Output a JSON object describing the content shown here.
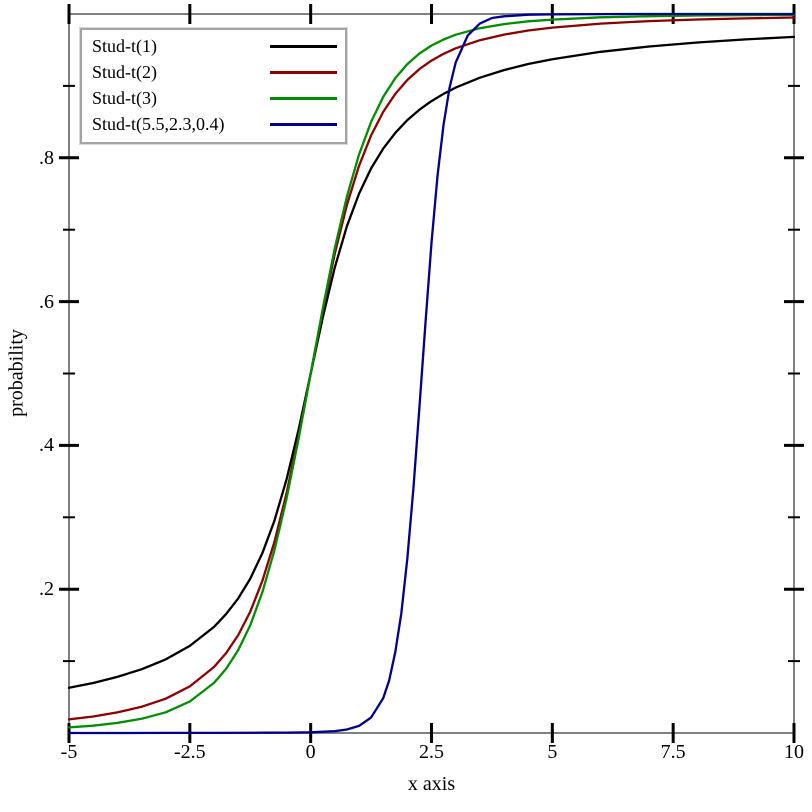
{
  "figure": {
    "background": "#ffffff",
    "axis_color": "#808080",
    "tick_color": "#000000"
  },
  "chart_data": {
    "type": "line",
    "title": "",
    "xlabel": "x axis",
    "ylabel": "probability",
    "xlim": [
      -5,
      10
    ],
    "ylim": [
      0,
      1
    ],
    "grid": false,
    "legend_position": "top-left",
    "x_ticks": {
      "values": [
        -5,
        -2.5,
        0,
        2.5,
        5,
        7.5,
        10
      ],
      "labels": [
        "-5",
        "-2.5",
        "0",
        "2.5",
        "5",
        "7.5",
        "10"
      ]
    },
    "y_ticks": {
      "major_values": [
        0.2,
        0.4,
        0.6,
        0.8
      ],
      "major_labels": [
        ".2",
        ".4",
        ".6",
        ".8"
      ],
      "minor_values": [
        0.1,
        0.3,
        0.5,
        0.7,
        0.9
      ]
    },
    "series": [
      {
        "name": "Stud-t(1)",
        "color": "#000000",
        "points": [
          [
            -5,
            0.0628
          ],
          [
            -4.5,
            0.0696
          ],
          [
            -4,
            0.078
          ],
          [
            -3.5,
            0.0886
          ],
          [
            -3,
            0.1024
          ],
          [
            -2.5,
            0.1211
          ],
          [
            -2,
            0.1476
          ],
          [
            -1.75,
            0.1653
          ],
          [
            -1.5,
            0.1872
          ],
          [
            -1.25,
            0.2148
          ],
          [
            -1,
            0.25
          ],
          [
            -0.75,
            0.2952
          ],
          [
            -0.5,
            0.3524
          ],
          [
            -0.25,
            0.422
          ],
          [
            0,
            0.5
          ],
          [
            0.25,
            0.578
          ],
          [
            0.5,
            0.6476
          ],
          [
            0.75,
            0.7048
          ],
          [
            1,
            0.75
          ],
          [
            1.25,
            0.7852
          ],
          [
            1.5,
            0.8128
          ],
          [
            1.75,
            0.8347
          ],
          [
            2,
            0.8524
          ],
          [
            2.25,
            0.8669
          ],
          [
            2.5,
            0.8789
          ],
          [
            2.75,
            0.889
          ],
          [
            3,
            0.8976
          ],
          [
            3.5,
            0.9114
          ],
          [
            4,
            0.922
          ],
          [
            4.5,
            0.9304
          ],
          [
            5,
            0.9372
          ],
          [
            6,
            0.9474
          ],
          [
            7,
            0.9548
          ],
          [
            8,
            0.9604
          ],
          [
            9,
            0.9647
          ],
          [
            10,
            0.9682
          ]
        ]
      },
      {
        "name": "Stud-t(2)",
        "color": "#8B0000",
        "points": [
          [
            -5,
            0.0189
          ],
          [
            -4.5,
            0.023
          ],
          [
            -4,
            0.0286
          ],
          [
            -3.5,
            0.0364
          ],
          [
            -3,
            0.0477
          ],
          [
            -2.5,
            0.0648
          ],
          [
            -2,
            0.0918
          ],
          [
            -1.75,
            0.1111
          ],
          [
            -1.5,
            0.1362
          ],
          [
            -1.25,
            0.1689
          ],
          [
            -1,
            0.2113
          ],
          [
            -0.75,
            0.2657
          ],
          [
            -0.5,
            0.3333
          ],
          [
            -0.25,
            0.413
          ],
          [
            0,
            0.5
          ],
          [
            0.25,
            0.587
          ],
          [
            0.5,
            0.6667
          ],
          [
            0.75,
            0.7343
          ],
          [
            1,
            0.7887
          ],
          [
            1.25,
            0.8311
          ],
          [
            1.5,
            0.8638
          ],
          [
            1.75,
            0.8889
          ],
          [
            2,
            0.9082
          ],
          [
            2.25,
            0.9233
          ],
          [
            2.5,
            0.9352
          ],
          [
            2.75,
            0.9446
          ],
          [
            3,
            0.9523
          ],
          [
            3.5,
            0.9636
          ],
          [
            4,
            0.9714
          ],
          [
            4.5,
            0.977
          ],
          [
            5,
            0.9811
          ],
          [
            6,
            0.9867
          ],
          [
            7,
            0.9901
          ],
          [
            8,
            0.9924
          ],
          [
            9,
            0.9939
          ],
          [
            10,
            0.9951
          ]
        ]
      },
      {
        "name": "Stud-t(3)",
        "color": "#008C00",
        "points": [
          [
            -5,
            0.0078
          ],
          [
            -4.5,
            0.0102
          ],
          [
            -4,
            0.0141
          ],
          [
            -3.5,
            0.0198
          ],
          [
            -3,
            0.0288
          ],
          [
            -2.5,
            0.0438
          ],
          [
            -2,
            0.0697
          ],
          [
            -1.75,
            0.0892
          ],
          [
            -1.5,
            0.1153
          ],
          [
            -1.25,
            0.15
          ],
          [
            -1,
            0.1955
          ],
          [
            -0.75,
            0.2539
          ],
          [
            -0.5,
            0.3257
          ],
          [
            -0.25,
            0.4094
          ],
          [
            0,
            0.5
          ],
          [
            0.25,
            0.5906
          ],
          [
            0.5,
            0.6743
          ],
          [
            0.75,
            0.7461
          ],
          [
            1,
            0.8045
          ],
          [
            1.25,
            0.85
          ],
          [
            1.5,
            0.8847
          ],
          [
            1.75,
            0.9108
          ],
          [
            2,
            0.9303
          ],
          [
            2.25,
            0.9451
          ],
          [
            2.5,
            0.9562
          ],
          [
            2.75,
            0.9646
          ],
          [
            3,
            0.9712
          ],
          [
            3.5,
            0.9802
          ],
          [
            4,
            0.9859
          ],
          [
            4.5,
            0.9898
          ],
          [
            5,
            0.9922
          ],
          [
            6,
            0.9954
          ],
          [
            7,
            0.997
          ],
          [
            8,
            0.9979
          ],
          [
            9,
            0.9985
          ],
          [
            10,
            0.9989
          ]
        ]
      },
      {
        "name": "Stud-t(5.5,2.3,0.4)",
        "color": "#00008B",
        "points": [
          [
            -5,
            0.0
          ],
          [
            -4,
            0.0
          ],
          [
            -3,
            0.0001
          ],
          [
            -2,
            0.0002
          ],
          [
            -1,
            0.0004
          ],
          [
            -0.5,
            0.0006
          ],
          [
            0,
            0.001
          ],
          [
            0.5,
            0.0025
          ],
          [
            0.75,
            0.0048
          ],
          [
            1,
            0.0099
          ],
          [
            1.25,
            0.0216
          ],
          [
            1.5,
            0.0484
          ],
          [
            1.625,
            0.0734
          ],
          [
            1.75,
            0.1126
          ],
          [
            1.875,
            0.1662
          ],
          [
            2,
            0.2422
          ],
          [
            2.125,
            0.34
          ],
          [
            2.25,
            0.4526
          ],
          [
            2.375,
            0.5708
          ],
          [
            2.5,
            0.6818
          ],
          [
            2.625,
            0.7747
          ],
          [
            2.75,
            0.8464
          ],
          [
            2.875,
            0.8978
          ],
          [
            3,
            0.9326
          ],
          [
            3.25,
            0.9702
          ],
          [
            3.5,
            0.9866
          ],
          [
            3.75,
            0.9944
          ],
          [
            4,
            0.9968
          ],
          [
            4.5,
            0.999
          ],
          [
            5,
            0.9995
          ],
          [
            6,
            0.9999
          ],
          [
            7,
            1.0
          ],
          [
            8,
            1.0
          ],
          [
            9,
            1.0
          ],
          [
            10,
            1.0
          ]
        ]
      }
    ]
  }
}
